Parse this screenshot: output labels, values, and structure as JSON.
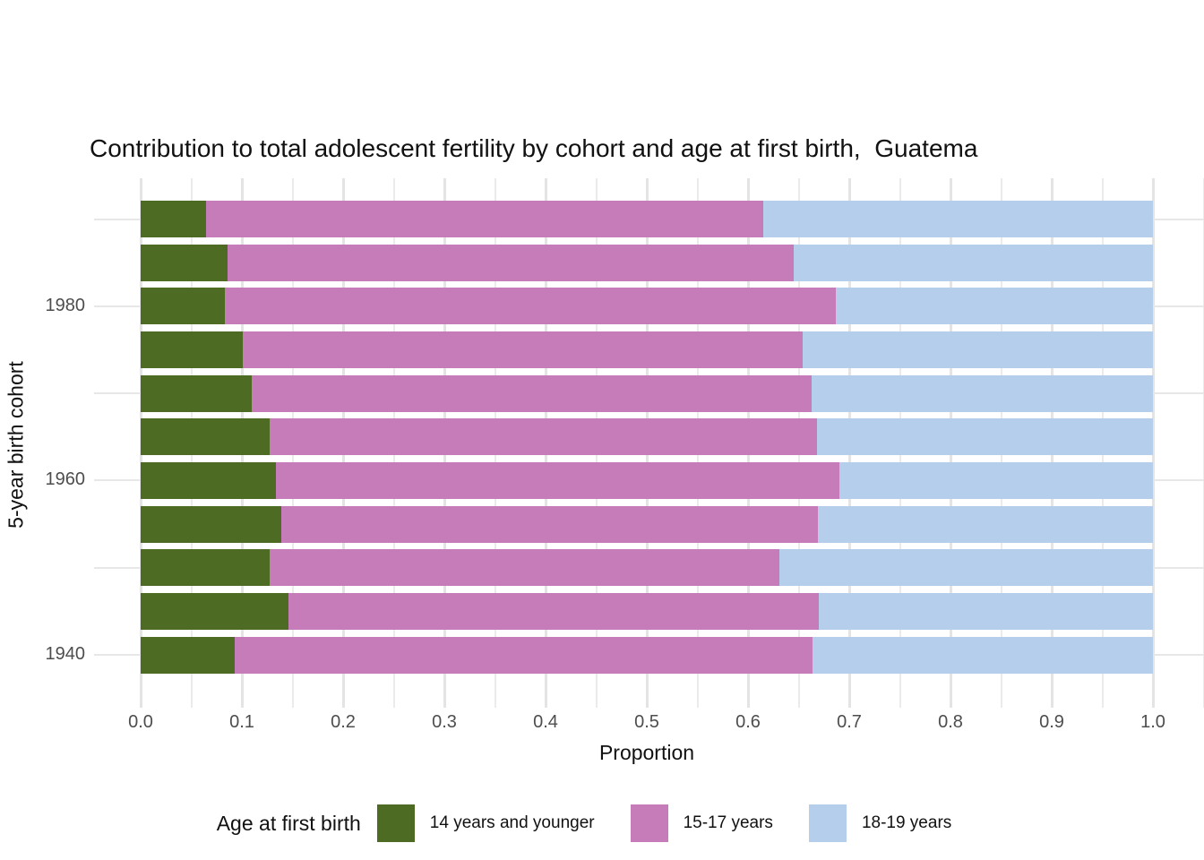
{
  "chart_data": {
    "type": "bar",
    "orientation": "horizontal",
    "stacked": true,
    "title": "Contribution to total adolescent fertility by cohort and age at first birth,  Guatema",
    "xlabel": "Proportion",
    "ylabel": "5-year birth cohort",
    "legend_title": "Age at first birth",
    "legend_position": "bottom",
    "xlim": [
      0.0,
      1.0
    ],
    "x_ticks": [
      "0.0",
      "0.1",
      "0.2",
      "0.3",
      "0.4",
      "0.5",
      "0.6",
      "0.7",
      "0.8",
      "0.9",
      "1.0"
    ],
    "y_ticks": [
      1980,
      1960,
      1940
    ],
    "grid": {
      "x_minor_step": 0.05,
      "y_major": [
        1980,
        1960,
        1940
      ],
      "y_minor": [
        1990,
        1970,
        1950
      ],
      "color": "#ebebeb"
    },
    "categories": [
      1990,
      1985,
      1980,
      1975,
      1970,
      1965,
      1960,
      1955,
      1950,
      1945,
      1940
    ],
    "series": [
      {
        "name": "14 years and younger",
        "color": "#4D6B22",
        "values": [
          0.065,
          0.086,
          0.083,
          0.101,
          0.11,
          0.127,
          0.134,
          0.139,
          0.127,
          0.146,
          0.093
        ]
      },
      {
        "name": "15-17 years",
        "color": "#C77CBA",
        "values": [
          0.55,
          0.559,
          0.604,
          0.553,
          0.553,
          0.541,
          0.556,
          0.53,
          0.504,
          0.524,
          0.571
        ]
      },
      {
        "name": "18-19 years",
        "color": "#B5CEEB",
        "values": [
          0.385,
          0.355,
          0.313,
          0.346,
          0.337,
          0.332,
          0.31,
          0.331,
          0.369,
          0.33,
          0.336
        ]
      }
    ],
    "colors": {
      "axis_text": "#4d4d4d",
      "text": "#111111",
      "background": "#ffffff"
    }
  }
}
